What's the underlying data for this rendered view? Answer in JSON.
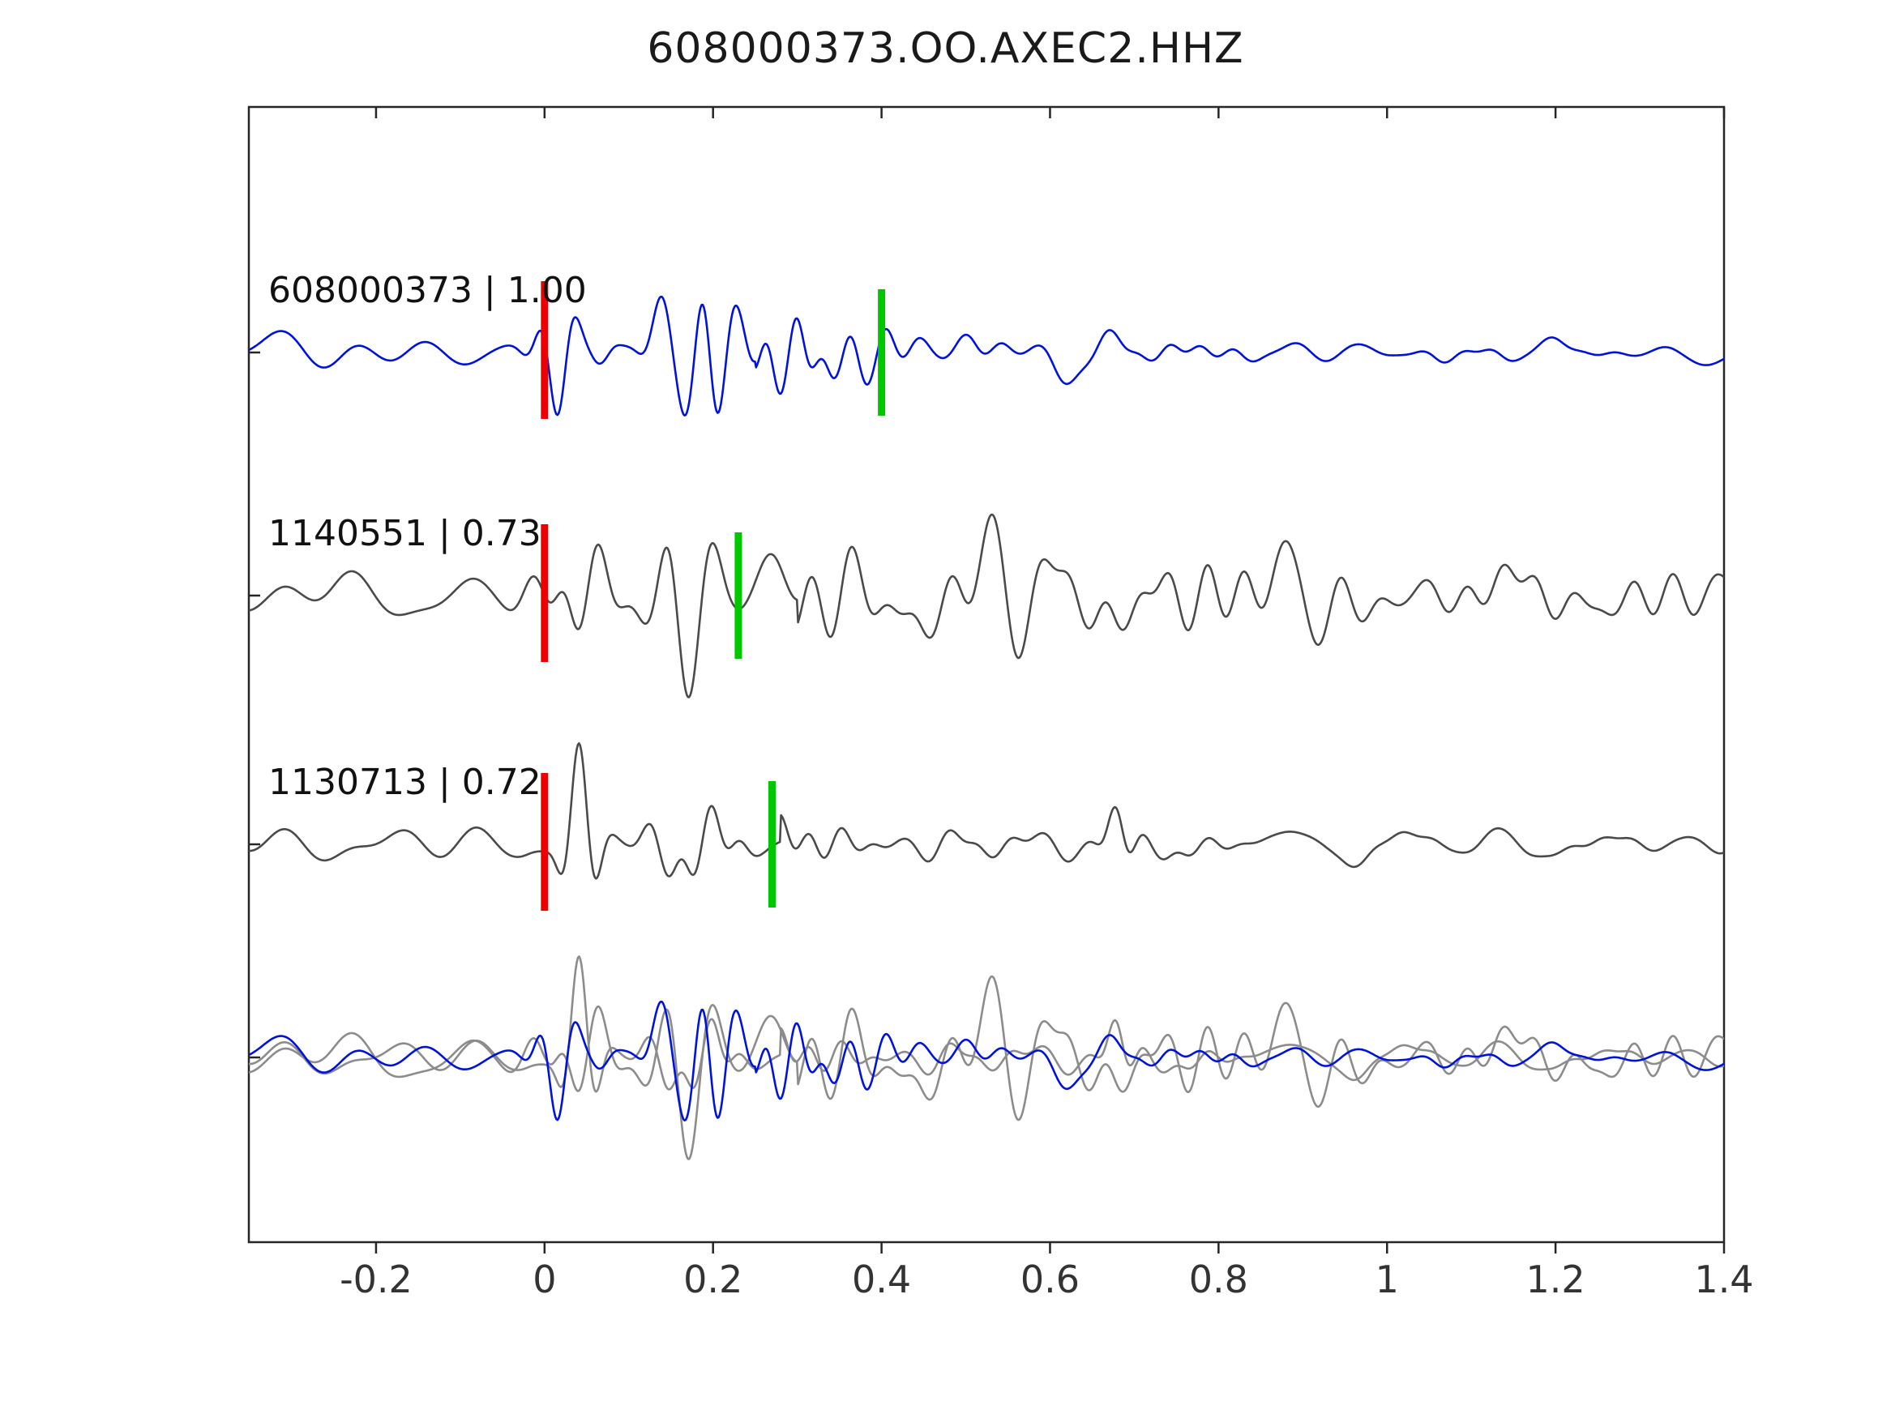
{
  "title": "608000373.OO.AXEC2.HHZ",
  "chart_data": {
    "type": "line",
    "title": "608000373.OO.AXEC2.HHZ",
    "xlabel": "",
    "ylabel": "",
    "xlim": [
      -0.351,
      1.4
    ],
    "x_ticks": [
      -0.2,
      0,
      0.2,
      0.4,
      0.6,
      0.8,
      1,
      1.2,
      1.4
    ],
    "x_tick_labels": [
      "-0.2",
      "0",
      "0.2",
      "0.4",
      "0.6",
      "0.8",
      "1",
      "1.2",
      "1.4"
    ],
    "grid": false,
    "legend": "none",
    "colors": {
      "reference": "#0013dd",
      "candidate": "#4a4a4a",
      "overlay_gray": "#8c8c8c",
      "pick_red": "#ee0000",
      "pick_green": "#00c800",
      "axis": "#262626",
      "tick_label": "#333333",
      "trace_label": "#111111"
    },
    "traces": [
      {
        "id": "608000373",
        "similarity": "1.00",
        "label": "608000373 | 1.00",
        "color_key": "reference",
        "row": 0,
        "picks": {
          "red": 0.0,
          "green": 0.4
        },
        "synth": {
          "seed": 101,
          "noise": 10,
          "bg_freq": [
            2,
            14
          ],
          "burst_freq": [
            8,
            30
          ],
          "packets": [
            [
              0.03,
              0.035,
              55
            ],
            [
              0.175,
              0.04,
              90
            ],
            [
              0.29,
              0.06,
              30
            ]
          ],
          "coda": [
            0.25,
            12,
            0.5
          ]
        }
      },
      {
        "id": "1140551",
        "similarity": "0.73",
        "label": "1140551 | 0.73",
        "color_key": "candidate",
        "row": 1,
        "picks": {
          "red": 0.0,
          "green": 0.23
        },
        "synth": {
          "seed": 202,
          "noise": 16,
          "bg_freq": [
            2,
            14
          ],
          "burst_freq": [
            7,
            26
          ],
          "packets": [
            [
              0.04,
              0.05,
              50
            ],
            [
              0.17,
              0.06,
              45
            ],
            [
              0.45,
              0.25,
              20
            ]
          ],
          "coda": [
            0.3,
            26,
            1.0
          ]
        }
      },
      {
        "id": "1130713",
        "similarity": "0.72",
        "label": "1130713 | 0.72",
        "color_key": "candidate",
        "row": 2,
        "picks": {
          "red": 0.0,
          "green": 0.27
        },
        "synth": {
          "seed": 303,
          "noise": 9,
          "bg_freq": [
            2,
            14
          ],
          "burst_freq": [
            8,
            30
          ],
          "packets": [
            [
              0.035,
              0.03,
              60
            ],
            [
              0.17,
              0.045,
              40
            ],
            [
              0.68,
              0.025,
              25
            ]
          ],
          "coda": [
            0.28,
            13,
            0.5
          ]
        }
      }
    ],
    "overlay": {
      "row": 3,
      "members": [
        {
          "trace": 1,
          "color_key": "overlay_gray"
        },
        {
          "trace": 2,
          "color_key": "overlay_gray"
        },
        {
          "trace": 0,
          "color_key": "reference"
        }
      ]
    }
  }
}
